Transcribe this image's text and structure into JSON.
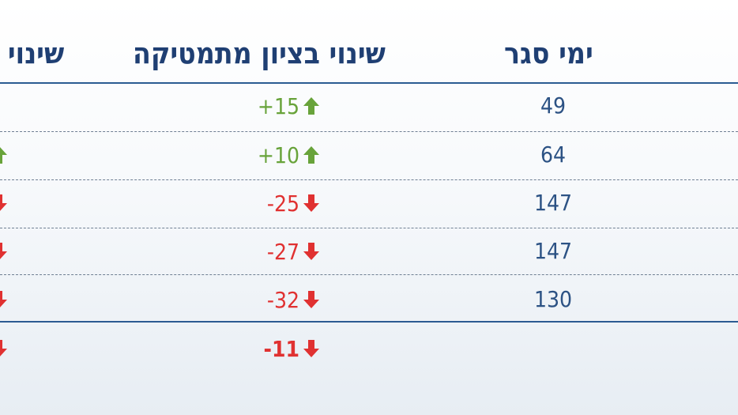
{
  "headers": {
    "days": "ימי סגר",
    "math_change": "שינוי בציון מתמטיקה",
    "third": "שינוי ב"
  },
  "rows": [
    {
      "days": "49",
      "change": "+15"
    },
    {
      "days": "64",
      "change": "+10"
    },
    {
      "days": "147",
      "change": "-25"
    },
    {
      "days": "147",
      "change": "-27"
    },
    {
      "days": "130",
      "change": "-32"
    }
  ],
  "total": {
    "change": "-11"
  },
  "colors": {
    "up": "#68a33a",
    "down": "#e03131",
    "text": "#2c5284",
    "header": "#1f3f73",
    "rule": "#2b5b92"
  },
  "icons": {
    "up": "arrow-up-icon",
    "down": "arrow-down-icon"
  }
}
